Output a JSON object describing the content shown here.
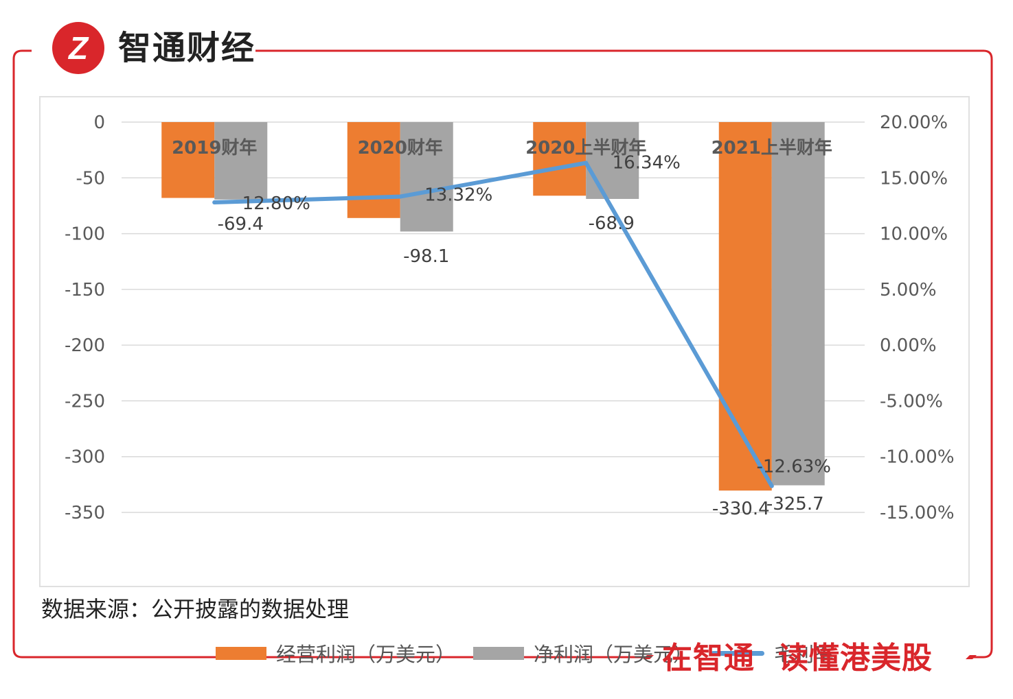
{
  "brand": {
    "name": "智通财经",
    "logo_text": "Z",
    "slogan_left": "在智通",
    "slogan_right": "读懂港美股",
    "color": "#d9262b"
  },
  "source_note": "数据来源：公开披露的数据处理",
  "chart_data": {
    "type": "bar",
    "categories": [
      "2019财年",
      "2020财年",
      "2020上半财年",
      "2021上半财年"
    ],
    "series": [
      {
        "name": "经营利润（万美元）",
        "type": "bar",
        "axis": "left",
        "color": "#ed7d31",
        "values": [
          -68,
          -86,
          -66,
          -330.4
        ],
        "value_labels": [
          "",
          "",
          "",
          "-330.4"
        ]
      },
      {
        "name": "净利润（万美元）",
        "type": "bar",
        "axis": "left",
        "color": "#a5a5a5",
        "values": [
          -69.4,
          -98.1,
          -68.9,
          -325.7
        ],
        "value_labels": [
          "-69.4",
          "-98.1",
          "-68.9",
          "-325.7"
        ]
      },
      {
        "name": "毛利率",
        "type": "line",
        "axis": "right",
        "color": "#5b9bd5",
        "values": [
          12.8,
          13.32,
          16.34,
          -12.63
        ],
        "value_labels": [
          "12.80%",
          "13.32%",
          "16.34%",
          "-12.63%"
        ]
      }
    ],
    "y_left": {
      "ylim": [
        -350,
        0
      ],
      "ticks": [
        0,
        -50,
        -100,
        -150,
        -200,
        -250,
        -300,
        -350
      ],
      "tick_labels": [
        "0",
        "-50",
        "-100",
        "-150",
        "-200",
        "-250",
        "-300",
        "-350"
      ]
    },
    "y_right": {
      "ylim": [
        -15,
        20
      ],
      "ticks": [
        20,
        15,
        10,
        5,
        0,
        -5,
        -10,
        -15
      ],
      "tick_labels": [
        "20.00%",
        "15.00%",
        "10.00%",
        "5.00%",
        "0.00%",
        "-5.00%",
        "-10.00%",
        "-15.00%"
      ]
    },
    "grid": true,
    "legend": "bottom"
  }
}
